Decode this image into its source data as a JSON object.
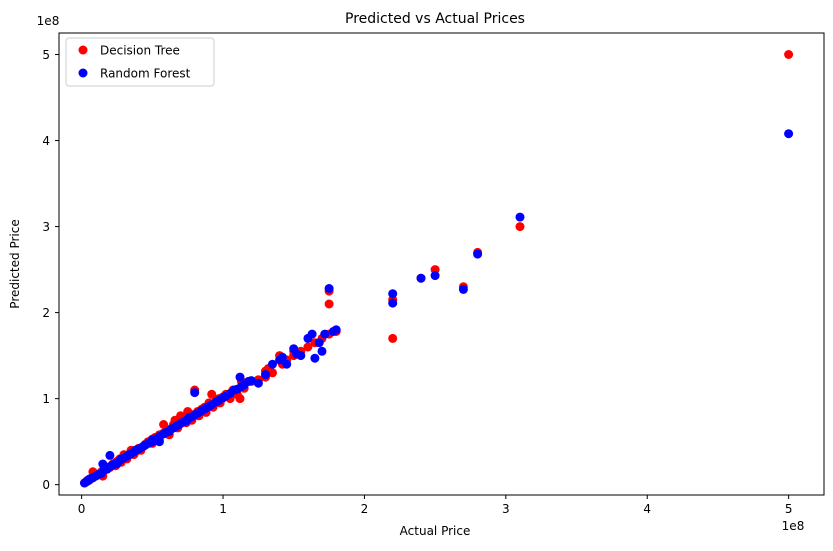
{
  "chart_data": {
    "type": "scatter",
    "title": "Predicted vs Actual Prices",
    "xlabel": "Actual Price",
    "ylabel": "Predicted Price",
    "x_offset_text": "1e8",
    "y_offset_text": "1e8",
    "xlim": [
      -0.16,
      5.25
    ],
    "ylim": [
      -0.12,
      5.25
    ],
    "xticks": [
      0,
      1,
      2,
      3,
      4,
      5
    ],
    "yticks": [
      0,
      1,
      2,
      3,
      4,
      5
    ],
    "xtick_labels": [
      "0",
      "1",
      "2",
      "3",
      "4",
      "5"
    ],
    "ytick_labels": [
      "0",
      "1",
      "2",
      "3",
      "4",
      "5"
    ],
    "grid": false,
    "legend_position": "top-left",
    "series": [
      {
        "name": "Decision Tree",
        "color": "#ff0000",
        "points": [
          [
            0.02,
            0.02
          ],
          [
            0.03,
            0.03
          ],
          [
            0.04,
            0.05
          ],
          [
            0.05,
            0.06
          ],
          [
            0.06,
            0.06
          ],
          [
            0.08,
            0.09
          ],
          [
            0.1,
            0.11
          ],
          [
            0.08,
            0.15
          ],
          [
            0.12,
            0.12
          ],
          [
            0.14,
            0.15
          ],
          [
            0.15,
            0.1
          ],
          [
            0.16,
            0.18
          ],
          [
            0.18,
            0.2
          ],
          [
            0.2,
            0.2
          ],
          [
            0.22,
            0.24
          ],
          [
            0.24,
            0.22
          ],
          [
            0.25,
            0.27
          ],
          [
            0.27,
            0.3
          ],
          [
            0.28,
            0.26
          ],
          [
            0.3,
            0.32
          ],
          [
            0.3,
            0.35
          ],
          [
            0.32,
            0.3
          ],
          [
            0.34,
            0.36
          ],
          [
            0.35,
            0.4
          ],
          [
            0.37,
            0.35
          ],
          [
            0.38,
            0.38
          ],
          [
            0.4,
            0.42
          ],
          [
            0.42,
            0.4
          ],
          [
            0.44,
            0.45
          ],
          [
            0.45,
            0.47
          ],
          [
            0.47,
            0.5
          ],
          [
            0.5,
            0.48
          ],
          [
            0.5,
            0.53
          ],
          [
            0.52,
            0.55
          ],
          [
            0.55,
            0.52
          ],
          [
            0.55,
            0.58
          ],
          [
            0.58,
            0.6
          ],
          [
            0.6,
            0.62
          ],
          [
            0.58,
            0.7
          ],
          [
            0.62,
            0.58
          ],
          [
            0.63,
            0.65
          ],
          [
            0.65,
            0.7
          ],
          [
            0.66,
            0.75
          ],
          [
            0.68,
            0.66
          ],
          [
            0.7,
            0.72
          ],
          [
            0.7,
            0.8
          ],
          [
            0.72,
            0.76
          ],
          [
            0.74,
            0.72
          ],
          [
            0.75,
            0.85
          ],
          [
            0.76,
            0.78
          ],
          [
            0.78,
            0.75
          ],
          [
            0.8,
            1.1
          ],
          [
            0.8,
            0.82
          ],
          [
            0.82,
            0.85
          ],
          [
            0.83,
            0.8
          ],
          [
            0.85,
            0.88
          ],
          [
            0.87,
            0.9
          ],
          [
            0.88,
            0.84
          ],
          [
            0.9,
            0.95
          ],
          [
            0.92,
            1.05
          ],
          [
            0.93,
            0.9
          ],
          [
            0.95,
            0.98
          ],
          [
            0.97,
            1.0
          ],
          [
            0.98,
            0.95
          ],
          [
            1.0,
            1.02
          ],
          [
            1.02,
            1.05
          ],
          [
            1.05,
            1.0
          ],
          [
            1.07,
            1.1
          ],
          [
            1.1,
            1.05
          ],
          [
            1.12,
            1.0
          ],
          [
            1.13,
            1.2
          ],
          [
            1.15,
            1.12
          ],
          [
            1.15,
            1.18
          ],
          [
            1.2,
            1.2
          ],
          [
            1.25,
            1.22
          ],
          [
            1.3,
            1.25
          ],
          [
            1.3,
            1.32
          ],
          [
            1.32,
            1.35
          ],
          [
            1.35,
            1.3
          ],
          [
            1.4,
            1.5
          ],
          [
            1.42,
            1.4
          ],
          [
            1.45,
            1.45
          ],
          [
            1.5,
            1.5
          ],
          [
            1.5,
            1.55
          ],
          [
            1.55,
            1.55
          ],
          [
            1.6,
            1.6
          ],
          [
            1.65,
            1.65
          ],
          [
            1.7,
            1.7
          ],
          [
            1.75,
            1.75
          ],
          [
            1.75,
            2.1
          ],
          [
            1.75,
            2.25
          ],
          [
            1.8,
            1.78
          ],
          [
            2.2,
            1.7
          ],
          [
            2.2,
            2.15
          ],
          [
            2.4,
            2.4
          ],
          [
            2.5,
            2.5
          ],
          [
            2.7,
            2.3
          ],
          [
            2.8,
            2.7
          ],
          [
            3.1,
            3.0
          ],
          [
            5.0,
            5.0
          ]
        ]
      },
      {
        "name": "Random Forest",
        "color": "#0000ff",
        "points": [
          [
            0.02,
            0.02
          ],
          [
            0.03,
            0.03
          ],
          [
            0.04,
            0.04
          ],
          [
            0.05,
            0.05
          ],
          [
            0.06,
            0.07
          ],
          [
            0.08,
            0.08
          ],
          [
            0.1,
            0.1
          ],
          [
            0.12,
            0.12
          ],
          [
            0.14,
            0.13
          ],
          [
            0.15,
            0.24
          ],
          [
            0.16,
            0.17
          ],
          [
            0.18,
            0.18
          ],
          [
            0.2,
            0.34
          ],
          [
            0.2,
            0.21
          ],
          [
            0.22,
            0.23
          ],
          [
            0.24,
            0.25
          ],
          [
            0.25,
            0.24
          ],
          [
            0.27,
            0.28
          ],
          [
            0.28,
            0.3
          ],
          [
            0.3,
            0.31
          ],
          [
            0.32,
            0.33
          ],
          [
            0.34,
            0.35
          ],
          [
            0.35,
            0.36
          ],
          [
            0.37,
            0.38
          ],
          [
            0.38,
            0.4
          ],
          [
            0.4,
            0.41
          ],
          [
            0.42,
            0.43
          ],
          [
            0.44,
            0.45
          ],
          [
            0.45,
            0.46
          ],
          [
            0.47,
            0.48
          ],
          [
            0.5,
            0.5
          ],
          [
            0.5,
            0.52
          ],
          [
            0.52,
            0.53
          ],
          [
            0.55,
            0.56
          ],
          [
            0.55,
            0.5
          ],
          [
            0.58,
            0.59
          ],
          [
            0.6,
            0.61
          ],
          [
            0.62,
            0.62
          ],
          [
            0.63,
            0.64
          ],
          [
            0.65,
            0.66
          ],
          [
            0.67,
            0.68
          ],
          [
            0.68,
            0.69
          ],
          [
            0.7,
            0.71
          ],
          [
            0.72,
            0.73
          ],
          [
            0.74,
            0.74
          ],
          [
            0.75,
            0.76
          ],
          [
            0.76,
            0.78
          ],
          [
            0.78,
            0.79
          ],
          [
            0.8,
            0.81
          ],
          [
            0.8,
            1.07
          ],
          [
            0.82,
            0.83
          ],
          [
            0.84,
            0.85
          ],
          [
            0.85,
            0.86
          ],
          [
            0.87,
            0.88
          ],
          [
            0.88,
            0.89
          ],
          [
            0.9,
            0.91
          ],
          [
            0.92,
            0.93
          ],
          [
            0.95,
            0.96
          ],
          [
            0.97,
            0.98
          ],
          [
            1.0,
            1.01
          ],
          [
            1.02,
            1.03
          ],
          [
            1.05,
            1.06
          ],
          [
            1.08,
            1.1
          ],
          [
            1.1,
            1.11
          ],
          [
            1.12,
            1.25
          ],
          [
            1.13,
            1.14
          ],
          [
            1.15,
            1.16
          ],
          [
            1.18,
            1.2
          ],
          [
            1.2,
            1.21
          ],
          [
            1.25,
            1.18
          ],
          [
            1.3,
            1.28
          ],
          [
            1.35,
            1.4
          ],
          [
            1.4,
            1.45
          ],
          [
            1.42,
            1.48
          ],
          [
            1.45,
            1.4
          ],
          [
            1.5,
            1.58
          ],
          [
            1.52,
            1.52
          ],
          [
            1.55,
            1.5
          ],
          [
            1.6,
            1.7
          ],
          [
            1.63,
            1.75
          ],
          [
            1.65,
            1.47
          ],
          [
            1.68,
            1.65
          ],
          [
            1.7,
            1.55
          ],
          [
            1.72,
            1.75
          ],
          [
            1.75,
            2.28
          ],
          [
            1.78,
            1.78
          ],
          [
            1.8,
            1.8
          ],
          [
            2.2,
            2.22
          ],
          [
            2.2,
            2.11
          ],
          [
            2.4,
            2.4
          ],
          [
            2.5,
            2.43
          ],
          [
            2.7,
            2.27
          ],
          [
            2.8,
            2.68
          ],
          [
            3.1,
            3.11
          ],
          [
            5.0,
            4.08
          ]
        ]
      }
    ]
  }
}
